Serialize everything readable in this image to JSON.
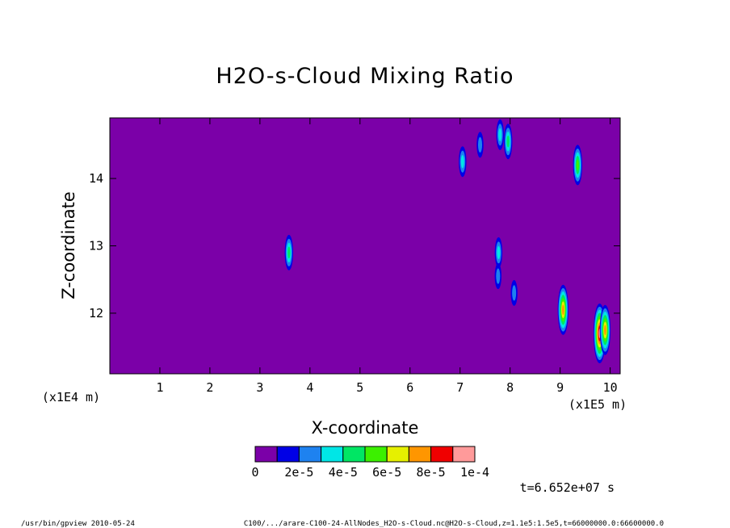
{
  "chart_data": {
    "type": "heatmap",
    "title": "H2O-s-Cloud Mixing Ratio",
    "xlabel": "X-coordinate",
    "ylabel": "Z-coordinate",
    "x_multiplier_label": "(x1E5 m)",
    "y_multiplier_label": "(x1E4 m)",
    "xlim": [
      0.0,
      10.2
    ],
    "ylim": [
      11.1,
      14.9
    ],
    "x_ticks": [
      1,
      2,
      3,
      4,
      5,
      6,
      7,
      8,
      9,
      10
    ],
    "x_tick_labels": [
      "1",
      "2",
      "3",
      "4",
      "5",
      "6",
      "7",
      "8",
      "9",
      "10"
    ],
    "y_ticks": [
      12,
      13,
      14
    ],
    "y_tick_labels": [
      "12",
      "13",
      "14"
    ],
    "background_value": 0,
    "background_color": "#7b00a8",
    "colorbar": {
      "colors": [
        "#7b00a8",
        "#0000e6",
        "#1e82f0",
        "#00e6e6",
        "#00e664",
        "#3cf000",
        "#e6f000",
        "#ff9600",
        "#f00000",
        "#ff9a9a"
      ],
      "labels": [
        "0",
        "2e-5",
        "4e-5",
        "6e-5",
        "8e-5",
        "1e-4"
      ]
    },
    "cloud_features": [
      {
        "x": 3.58,
        "z": 12.9,
        "peak_level": 4
      },
      {
        "x": 7.05,
        "z": 14.25,
        "peak_level": 3
      },
      {
        "x": 7.4,
        "z": 14.5,
        "peak_level": 2
      },
      {
        "x": 7.8,
        "z": 14.65,
        "peak_level": 3
      },
      {
        "x": 7.96,
        "z": 14.55,
        "peak_level": 4
      },
      {
        "x": 9.35,
        "z": 14.2,
        "peak_level": 5
      },
      {
        "x": 7.77,
        "z": 12.9,
        "peak_level": 3
      },
      {
        "x": 7.76,
        "z": 12.55,
        "peak_level": 2
      },
      {
        "x": 8.08,
        "z": 12.3,
        "peak_level": 2
      },
      {
        "x": 9.06,
        "z": 12.05,
        "peak_level": 7
      },
      {
        "x": 9.79,
        "z": 11.7,
        "peak_level": 9
      },
      {
        "x": 9.9,
        "z": 11.75,
        "peak_level": 7
      }
    ]
  },
  "time_label": "t=6.652e+07 s",
  "footer_left": "/usr/bin/gpview  2010-05-24",
  "footer_right": "C100/.../arare-C100-24-AllNodes_H2O-s-Cloud.nc@H2O-s-Cloud,z=1.1e5:1.5e5,t=66000000.0:66600000.0"
}
